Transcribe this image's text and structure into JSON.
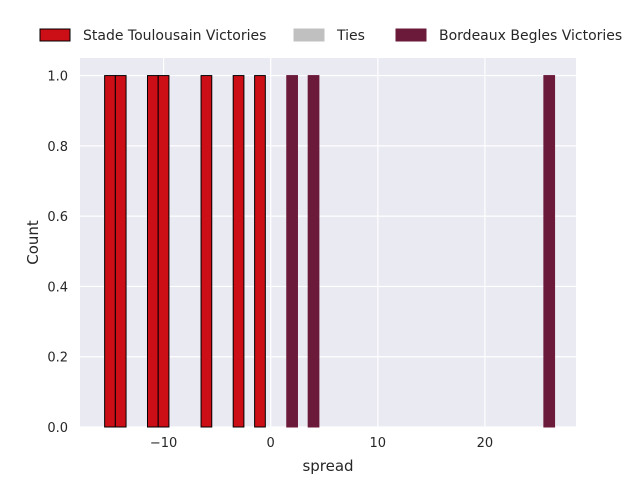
{
  "chart_data": {
    "type": "bar",
    "title": "",
    "xlabel": "spread",
    "ylabel": "Count",
    "xlim": [
      -17.8,
      28.5
    ],
    "ylim": [
      0,
      1.05
    ],
    "xticks": [
      -10,
      0,
      10,
      20
    ],
    "xtick_labels": [
      "−10",
      "0",
      "10",
      "20"
    ],
    "yticks": [
      0.0,
      0.2,
      0.4,
      0.6,
      0.8,
      1.0
    ],
    "ytick_labels": [
      "0.0",
      "0.2",
      "0.4",
      "0.6",
      "0.8",
      "1.0"
    ],
    "grid": true,
    "legend_placement": "top",
    "bin_width": 1,
    "series": [
      {
        "name": "Stade Toulousain Victories",
        "color": "#cc0e17",
        "edgecolor": "#000000",
        "bins": [
          {
            "x": -15,
            "count": 1
          },
          {
            "x": -14,
            "count": 1
          },
          {
            "x": -11,
            "count": 1
          },
          {
            "x": -10,
            "count": 1
          },
          {
            "x": -6,
            "count": 1
          },
          {
            "x": -3,
            "count": 1
          },
          {
            "x": -1,
            "count": 1
          }
        ]
      },
      {
        "name": "Ties",
        "color": "#c0c0c0",
        "edgecolor": "#c0c0c0",
        "bins": []
      },
      {
        "name": "Bordeaux Begles Victories",
        "color": "#6b1a3a",
        "edgecolor": "#6b1a3a",
        "bins": [
          {
            "x": 2,
            "count": 1
          },
          {
            "x": 4,
            "count": 1
          },
          {
            "x": 26,
            "count": 1
          }
        ]
      }
    ]
  }
}
